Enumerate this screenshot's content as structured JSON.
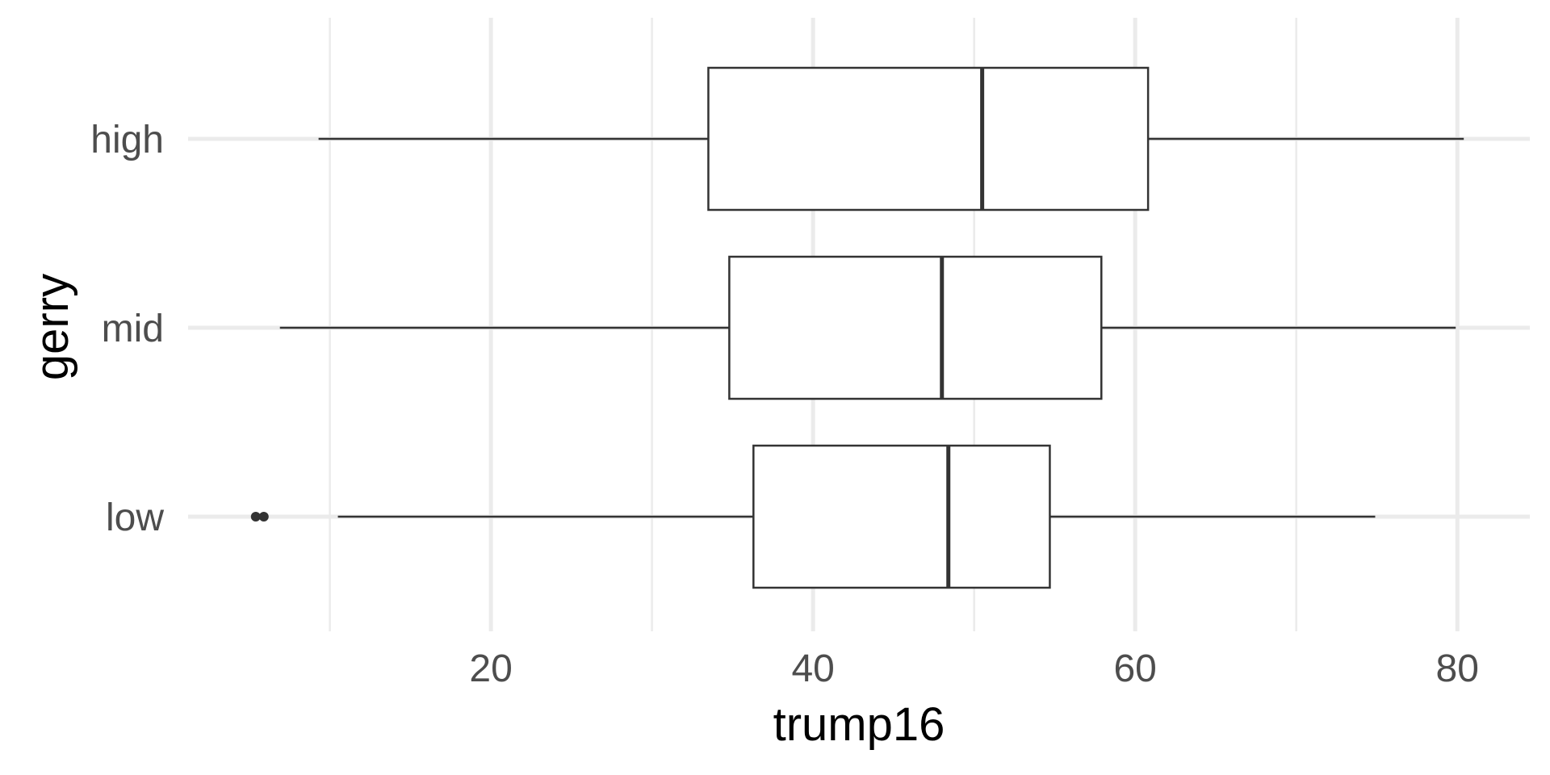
{
  "chart_data": {
    "type": "boxplot",
    "orientation": "horizontal",
    "xlabel": "trump16",
    "ylabel": "gerry",
    "xlim": [
      1.2,
      84.5
    ],
    "x_ticks": [
      20,
      40,
      60,
      80
    ],
    "x_minor_ticks": [
      10,
      30,
      50,
      70
    ],
    "grid": true,
    "categories": [
      "low",
      "mid",
      "high"
    ],
    "series": [
      {
        "category": "high",
        "min": 9.3,
        "q1": 33.5,
        "median": 50.5,
        "q3": 60.8,
        "max": 80.4,
        "outliers": []
      },
      {
        "category": "mid",
        "min": 6.9,
        "q1": 34.8,
        "median": 48.0,
        "q3": 57.9,
        "max": 79.9,
        "outliers": []
      },
      {
        "category": "low",
        "min": 10.5,
        "q1": 36.3,
        "median": 48.4,
        "q3": 54.7,
        "max": 74.9,
        "outliers": [
          5.4,
          5.9
        ]
      }
    ],
    "tick_labels": {
      "x": [
        "20",
        "40",
        "60",
        "80"
      ],
      "y": [
        "low",
        "mid",
        "high"
      ]
    }
  },
  "colors": {
    "background": "#ffffff",
    "grid": "#ebebeb",
    "box_stroke": "#333333",
    "box_fill": "#ffffff",
    "tick_text": "#4d4d4d",
    "title_text": "#000000"
  }
}
